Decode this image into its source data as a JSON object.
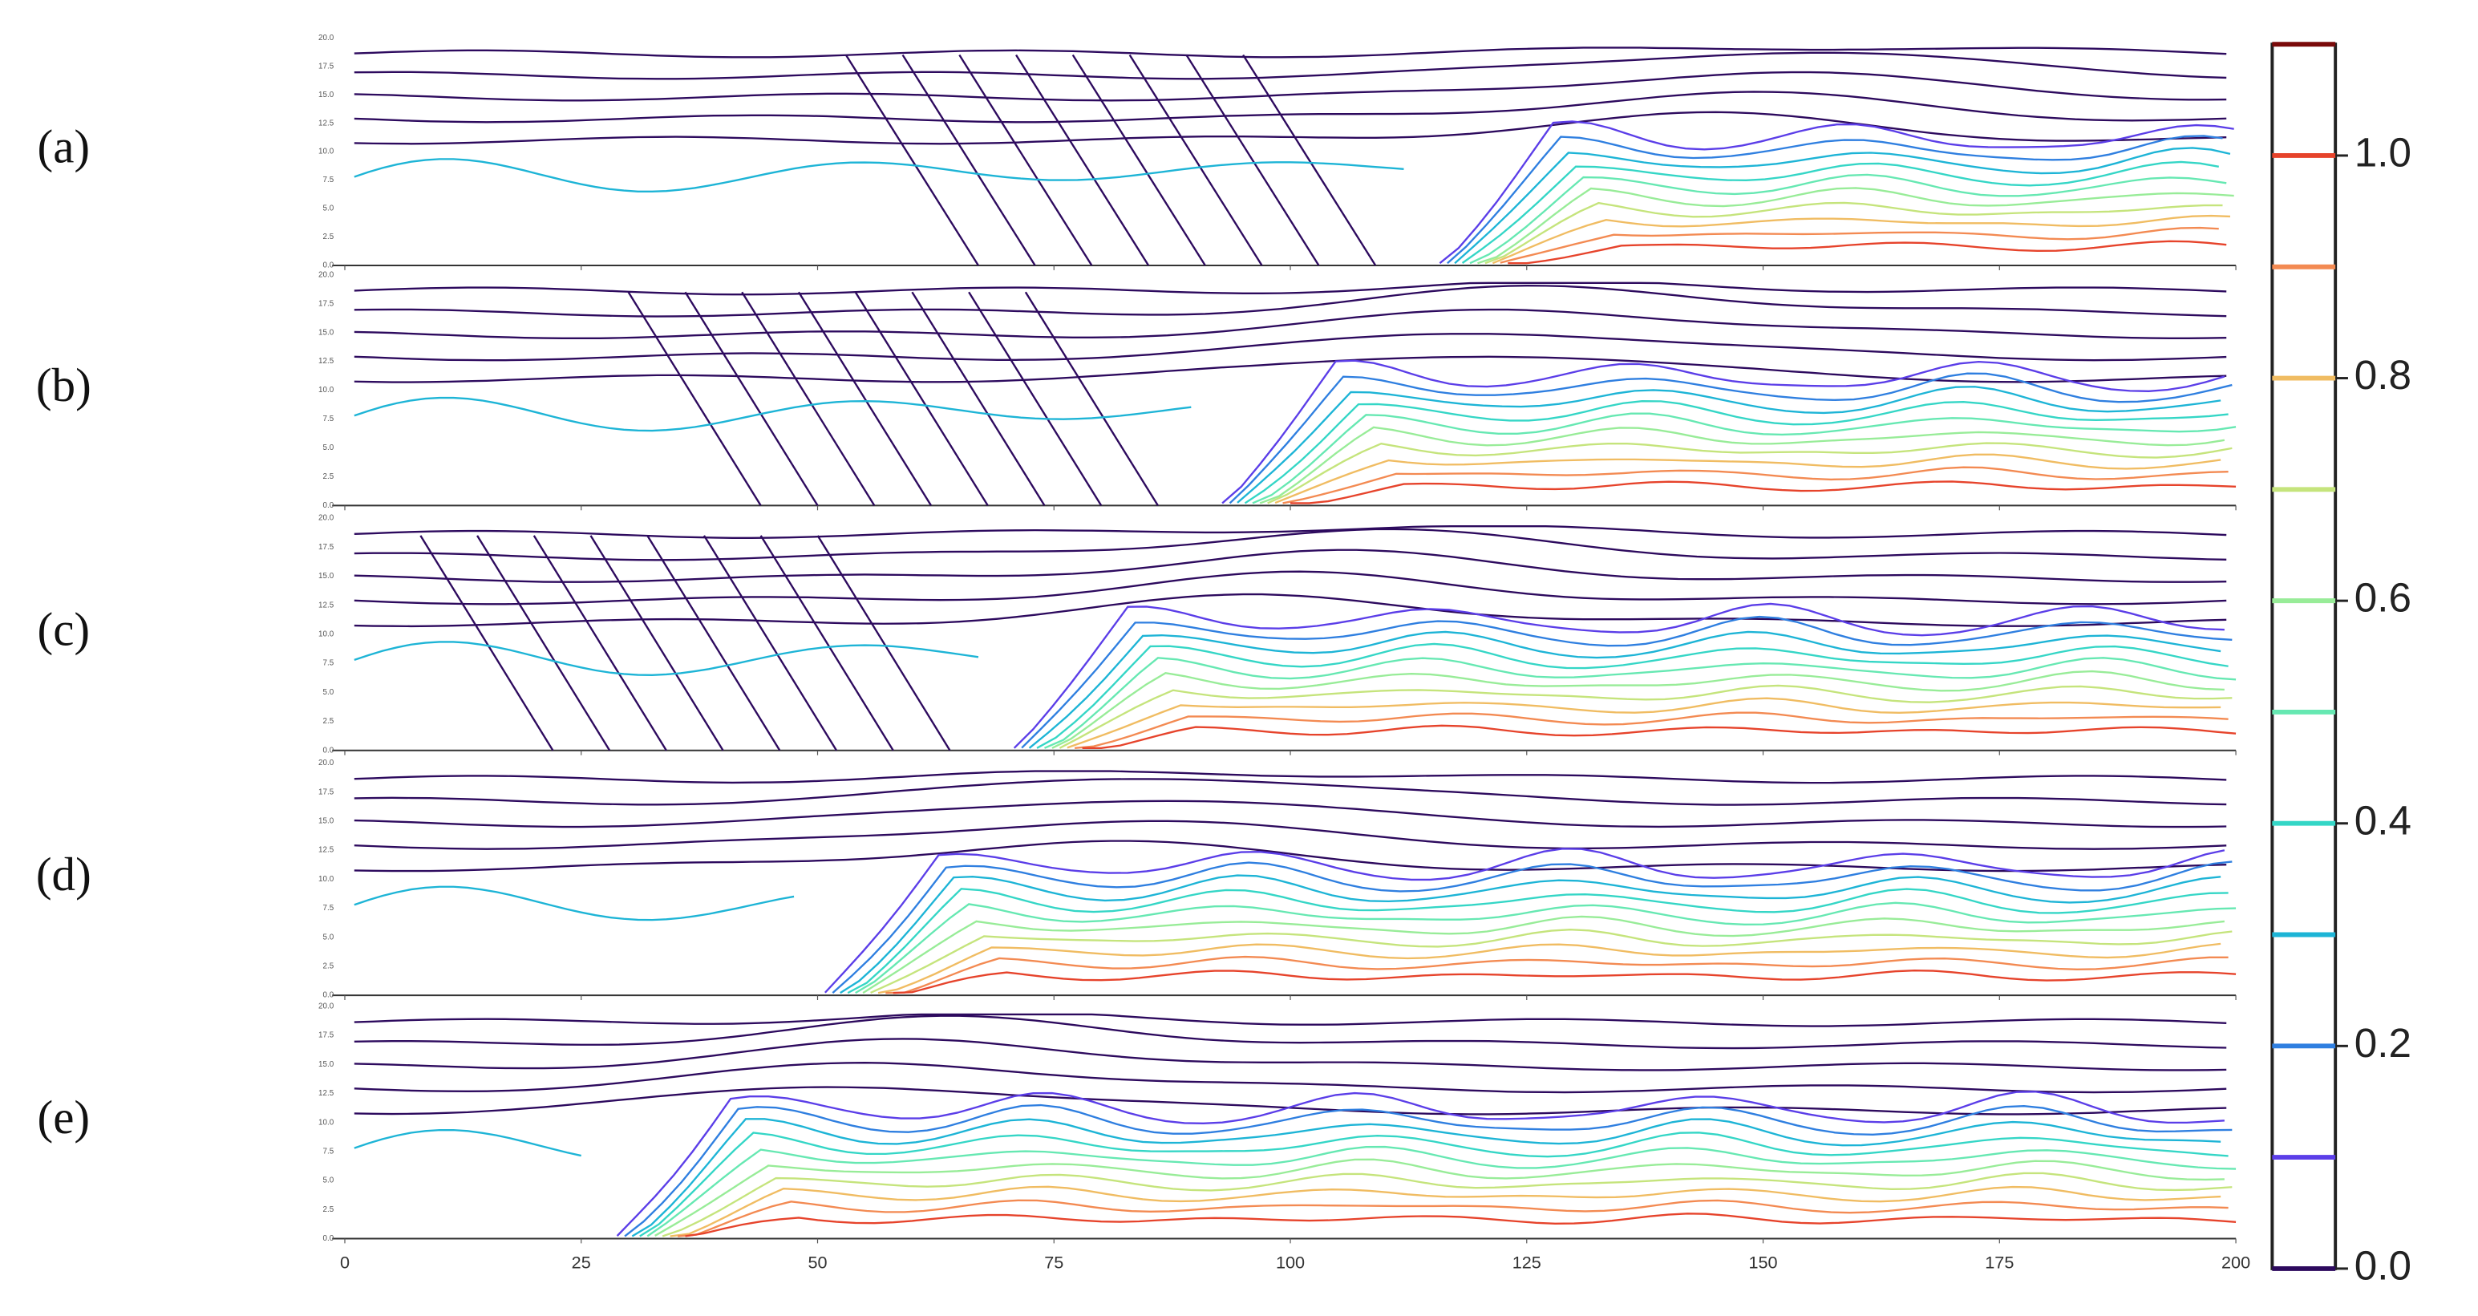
{
  "chart_data": {
    "type": "contour",
    "panels": [
      "(a)",
      "(b)",
      "(c)",
      "(d)",
      "(e)"
    ],
    "xlim": [
      0,
      200
    ],
    "xticks": [
      0,
      25,
      50,
      75,
      100,
      125,
      150,
      175,
      200
    ],
    "ylim": [
      0,
      20
    ],
    "yticks": [
      {
        "value": 0,
        "label": "0.0"
      },
      {
        "value": 2.5,
        "label": "2.5"
      },
      {
        "value": 5,
        "label": "5.0"
      },
      {
        "value": 7.5,
        "label": "7.5"
      },
      {
        "value": 10,
        "label": "10.0"
      },
      {
        "value": 12.5,
        "label": "12.5"
      },
      {
        "value": 15,
        "label": "15.0"
      },
      {
        "value": 17.5,
        "label": "17.5"
      },
      {
        "value": 20,
        "label": "20.0"
      }
    ],
    "colorbar": {
      "lim": [
        0,
        1.1
      ],
      "levels": [
        0,
        0.1,
        0.2,
        0.3,
        0.4,
        0.5,
        0.6,
        0.7,
        0.8,
        0.9,
        1.0,
        1.1
      ],
      "colors": [
        "#2d0a5e",
        "#5b3ee8",
        "#2f7fe0",
        "#1db4d6",
        "#34d6c6",
        "#66e8b2",
        "#98ec98",
        "#c5e47c",
        "#f0bc62",
        "#f38a52",
        "#e6432b",
        "#7a0a0a"
      ],
      "ticks": [
        {
          "value": 0,
          "label": "0.0"
        },
        {
          "value": 0.2,
          "label": "0.2"
        },
        {
          "value": 0.4,
          "label": "0.4"
        },
        {
          "value": 0.6,
          "label": "0.6"
        },
        {
          "value": 0.8,
          "label": "0.8"
        },
        {
          "value": 1.0,
          "label": "1.0"
        }
      ]
    }
  }
}
